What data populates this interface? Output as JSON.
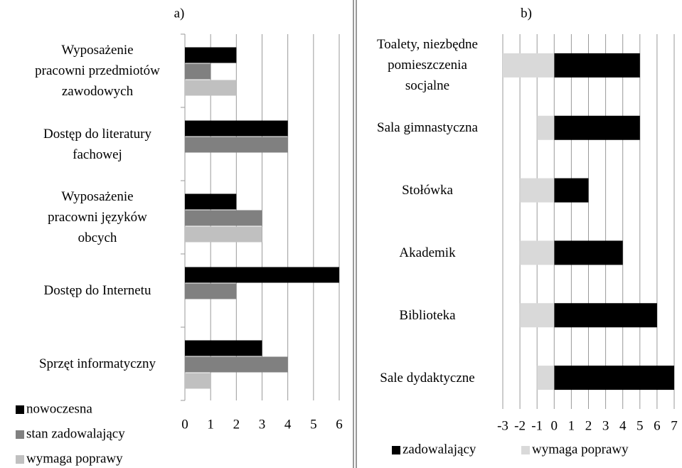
{
  "chart_data": [
    {
      "type": "bar",
      "orientation": "horizontal",
      "title": "a)",
      "categories": [
        "Wyposażenie\npracowni przedmiotów\nzawodowych",
        "Dostęp do literatury\nfachowej",
        "Wyposażenie\npracowni języków\nobcych",
        "Dostęp do Internetu",
        "Sprzęt informatyczny"
      ],
      "series": [
        {
          "name": "nowoczesna",
          "color": "#000000",
          "values": [
            2,
            4,
            2,
            6,
            3
          ]
        },
        {
          "name": "stan zadowalający",
          "color": "#808080",
          "values": [
            1,
            4,
            3,
            2,
            4
          ]
        },
        {
          "name": "wymaga poprawy",
          "color": "#c0c0c0",
          "values": [
            2,
            0,
            3,
            0,
            1
          ]
        }
      ],
      "xlim": [
        0,
        6
      ],
      "xticks": [
        0,
        1,
        2,
        3,
        4,
        5,
        6
      ],
      "grid": true,
      "legend": "bottom-left"
    },
    {
      "type": "bar",
      "orientation": "horizontal",
      "title": "b)",
      "categories": [
        "Toalety, niezbędne\npomieszczenia\nsocjalne",
        "Sala gimnastyczna",
        "Stołówka",
        "Akademik",
        "Biblioteka",
        "Sale dydaktyczne"
      ],
      "series": [
        {
          "name": "zadowalający",
          "color": "#000000",
          "values": [
            5,
            5,
            2,
            4,
            6,
            7
          ]
        },
        {
          "name": "wymaga poprawy",
          "color": "#d9d9d9",
          "values": [
            -3,
            -1,
            -2,
            -2,
            -2,
            -1
          ]
        }
      ],
      "xlim": [
        -3,
        7
      ],
      "xticks": [
        -3,
        -2,
        -1,
        0,
        1,
        2,
        3,
        4,
        5,
        6,
        7
      ],
      "grid": true,
      "legend": "bottom"
    }
  ]
}
